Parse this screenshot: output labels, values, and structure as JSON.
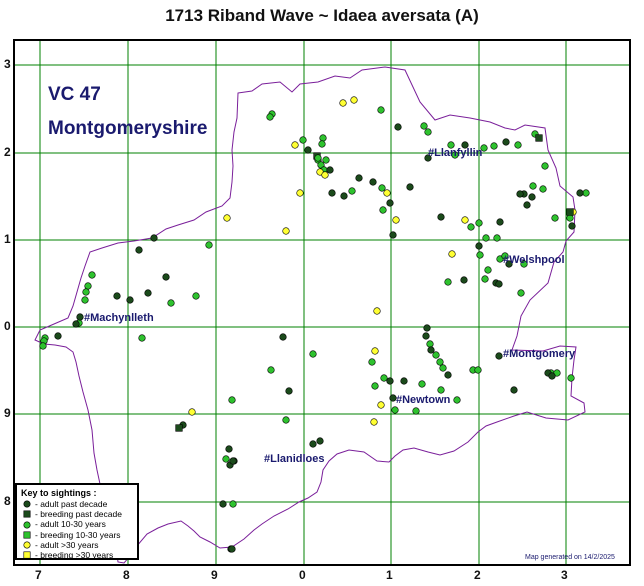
{
  "title": "1713 Riband Wave ~ Idaea aversata (A)",
  "vice_county": {
    "code": "VC 47",
    "name": "Montgomeryshire"
  },
  "grid": {
    "bottom_labels": [
      "7",
      "8",
      "9",
      "0",
      "1",
      "2",
      "3"
    ],
    "left_labels": [
      "3",
      "2",
      "1",
      "0",
      "9",
      "8"
    ],
    "line_color": "#008000"
  },
  "towns": [
    "#Llanfyllin",
    "#Welshpool",
    "#Machynlleth",
    "#Montgomery",
    "#Newtown",
    "#Llanidloes"
  ],
  "legend": {
    "title": "Key to sightings :",
    "items": [
      {
        "label": "- adult past decade",
        "shape": "circle",
        "color": "#1b4a1b"
      },
      {
        "label": "- breeding past decade",
        "shape": "square",
        "color": "#1b4a1b"
      },
      {
        "label": "- adult 10-30 years",
        "shape": "circle",
        "color": "#2ec22e"
      },
      {
        "label": "- breeding 10-30 years",
        "shape": "square",
        "color": "#2ec22e"
      },
      {
        "label": "- adult >30 years",
        "shape": "circle",
        "color": "#ffff33"
      },
      {
        "label": "- breeding >30 years",
        "shape": "square",
        "color": "#ffff33"
      }
    ]
  },
  "boundary_color": "#7a1f9a",
  "footer": "Map generated on 14/2/2025"
}
